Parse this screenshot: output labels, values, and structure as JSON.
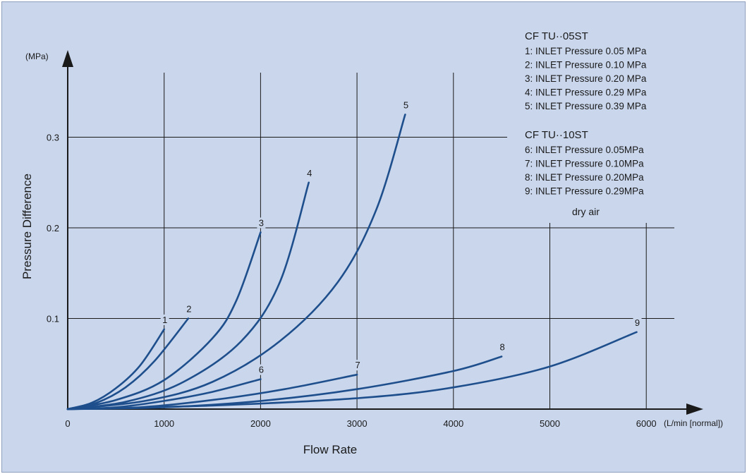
{
  "chart_data": {
    "type": "line",
    "xlabel": "Flow Rate",
    "ylabel": "Pressure Difference",
    "x_unit": "(L/min [normal])",
    "y_unit": "(MPa)",
    "xlim": [
      0,
      6500
    ],
    "ylim": [
      0,
      0.37
    ],
    "x_ticks": [
      "0",
      "1000",
      "2000",
      "3000",
      "4000",
      "5000",
      "6000"
    ],
    "y_ticks": [
      "0.1",
      "0.2",
      "0.3"
    ],
    "grid": true,
    "series_color": "#1e4f8c",
    "legend_groups": [
      {
        "title": "CF TU··05ST",
        "items": [
          "1: INLET Pressure  0.05 MPa",
          "2: INLET Pressure  0.10 MPa",
          "3: INLET Pressure  0.20 MPa",
          "4: INLET Pressure  0.29 MPa",
          "5: INLET Pressure  0.39 MPa"
        ]
      },
      {
        "title": "CF TU··10ST",
        "items": [
          "6: INLET Pressure  0.05MPa",
          "7: INLET Pressure  0.10MPa",
          "8: INLET Pressure  0.20MPa",
          "9: INLET Pressure  0.29MPa"
        ]
      }
    ],
    "annotation": "dry air",
    "series": [
      {
        "name": "1",
        "x": [
          0,
          250,
          500,
          750,
          1000
        ],
        "y": [
          0,
          0.007,
          0.023,
          0.048,
          0.088
        ]
      },
      {
        "name": "2",
        "x": [
          0,
          300,
          600,
          900,
          1250
        ],
        "y": [
          0,
          0.007,
          0.024,
          0.053,
          0.1
        ]
      },
      {
        "name": "3",
        "x": [
          0,
          500,
          1000,
          1500,
          1750,
          2000
        ],
        "y": [
          0,
          0.01,
          0.032,
          0.078,
          0.12,
          0.195
        ]
      },
      {
        "name": "4",
        "x": [
          0,
          600,
          1200,
          1800,
          2200,
          2500
        ],
        "y": [
          0,
          0.008,
          0.03,
          0.075,
          0.14,
          0.25
        ]
      },
      {
        "name": "5",
        "x": [
          0,
          800,
          1500,
          2200,
          2800,
          3200,
          3500
        ],
        "y": [
          0,
          0.009,
          0.03,
          0.075,
          0.14,
          0.22,
          0.325
        ]
      },
      {
        "name": "6",
        "x": [
          0,
          500,
          1000,
          1500,
          2000
        ],
        "y": [
          0,
          0.002,
          0.009,
          0.019,
          0.033
        ]
      },
      {
        "name": "7",
        "x": [
          0,
          750,
          1500,
          2250,
          3000
        ],
        "y": [
          0,
          0.002,
          0.01,
          0.022,
          0.038
        ]
      },
      {
        "name": "8",
        "x": [
          0,
          1000,
          2000,
          3000,
          4000,
          4500
        ],
        "y": [
          0,
          0.002,
          0.009,
          0.022,
          0.042,
          0.058
        ]
      },
      {
        "name": "9",
        "x": [
          0,
          1500,
          3000,
          4000,
          5000,
          5900
        ],
        "y": [
          0,
          0.004,
          0.012,
          0.024,
          0.047,
          0.085
        ]
      }
    ]
  }
}
